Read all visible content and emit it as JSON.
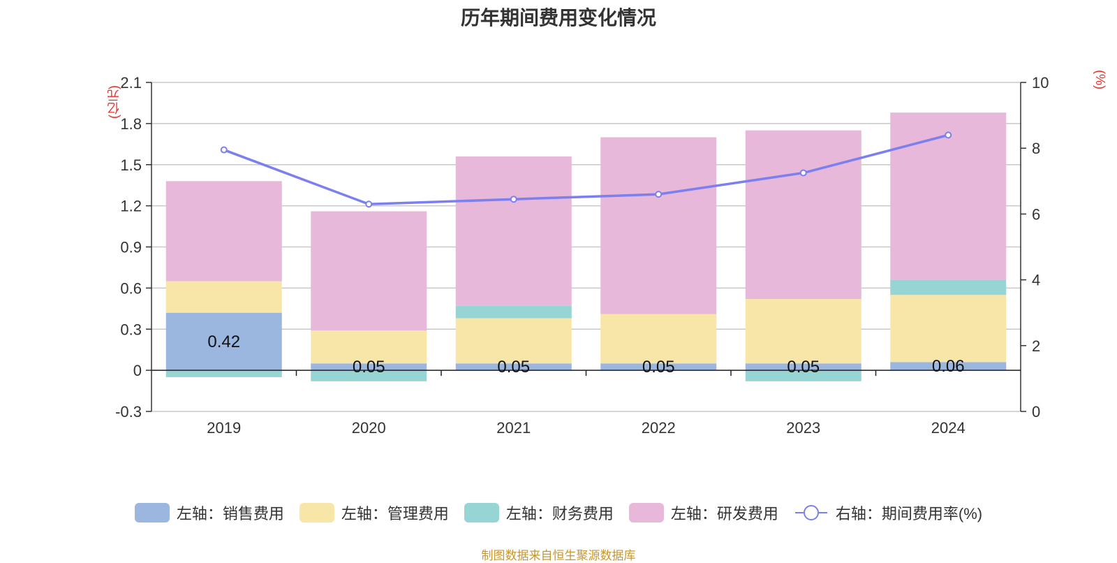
{
  "title": "历年期间费用变化情况",
  "left_unit": "(亿元)",
  "right_unit": "(%)",
  "source": "制图数据来自恒生聚源数据库",
  "chart_data": {
    "type": "bar",
    "stacked": true,
    "categories": [
      "2019",
      "2020",
      "2021",
      "2022",
      "2023",
      "2024"
    ],
    "series": [
      {
        "name": "左轴：销售费用",
        "axis": "left",
        "color": "#9bb7e0",
        "values": [
          0.42,
          0.05,
          0.05,
          0.05,
          0.05,
          0.06
        ],
        "labels": [
          "0.42",
          "0.05",
          "0.05",
          "0.05",
          "0.05",
          "0.06"
        ]
      },
      {
        "name": "左轴：管理费用",
        "axis": "left",
        "color": "#f8e6a8",
        "values": [
          0.23,
          0.24,
          0.33,
          0.36,
          0.47,
          0.49
        ]
      },
      {
        "name": "左轴：财务费用",
        "axis": "left",
        "color": "#97d4d4",
        "values": [
          -0.05,
          -0.08,
          0.09,
          0.0,
          -0.08,
          0.11
        ]
      },
      {
        "name": "左轴：研发费用",
        "axis": "left",
        "color": "#e7b8d9",
        "values": [
          0.73,
          0.87,
          1.09,
          1.29,
          1.23,
          1.22
        ]
      },
      {
        "name": "右轴：期间费用率(%)",
        "axis": "right",
        "type": "line",
        "color": "#7b7ff0",
        "values": [
          7.95,
          6.3,
          6.45,
          6.6,
          7.25,
          8.4
        ]
      }
    ],
    "left_axis": {
      "ylim": [
        -0.3,
        2.1
      ],
      "ticks": [
        "-0.3",
        "0",
        "0.3",
        "0.6",
        "0.9",
        "1.2",
        "1.5",
        "1.8",
        "2.1"
      ]
    },
    "right_axis": {
      "ylim": [
        0,
        10
      ],
      "ticks": [
        "0",
        "2",
        "4",
        "6",
        "8",
        "10"
      ]
    },
    "grid": true,
    "legend_position": "bottom"
  }
}
